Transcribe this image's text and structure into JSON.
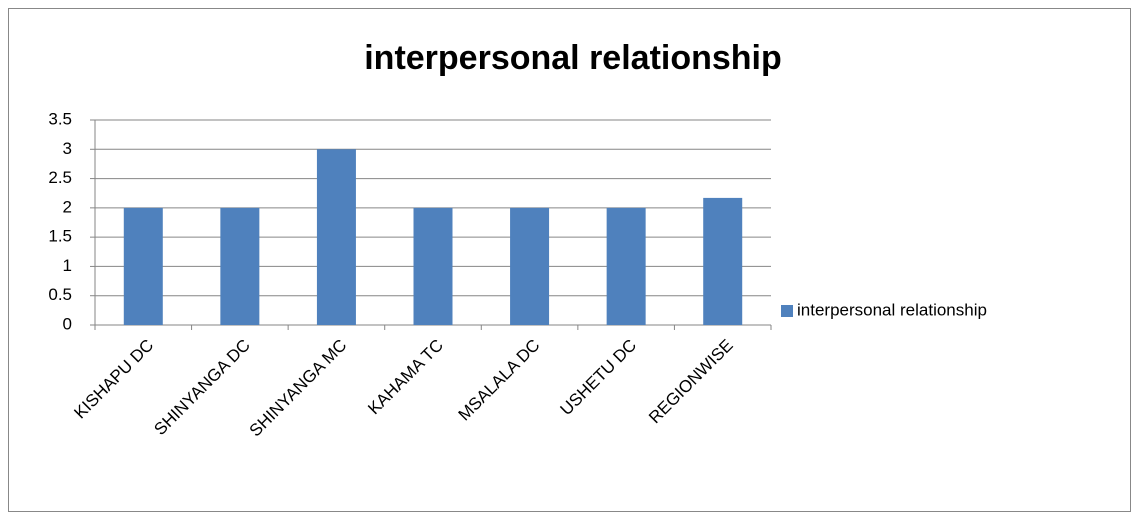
{
  "chart_data": {
    "type": "bar",
    "title": "interpersonal relationship",
    "categories": [
      "KISHAPU DC",
      "SHINYANGA DC",
      "SHINYANGA MC",
      "KAHAMA TC",
      "MSALALA DC",
      "USHETU DC",
      "REGIONWISE"
    ],
    "series": [
      {
        "name": "interpersonal relationship",
        "color": "#4f81bd",
        "values": [
          2,
          2,
          3,
          2,
          2,
          2,
          2.17
        ]
      }
    ],
    "ylim": [
      0,
      3.5
    ],
    "yticks": [
      0,
      0.5,
      1,
      1.5,
      2,
      2.5,
      3,
      3.5
    ],
    "grid": true,
    "legend": "right"
  }
}
